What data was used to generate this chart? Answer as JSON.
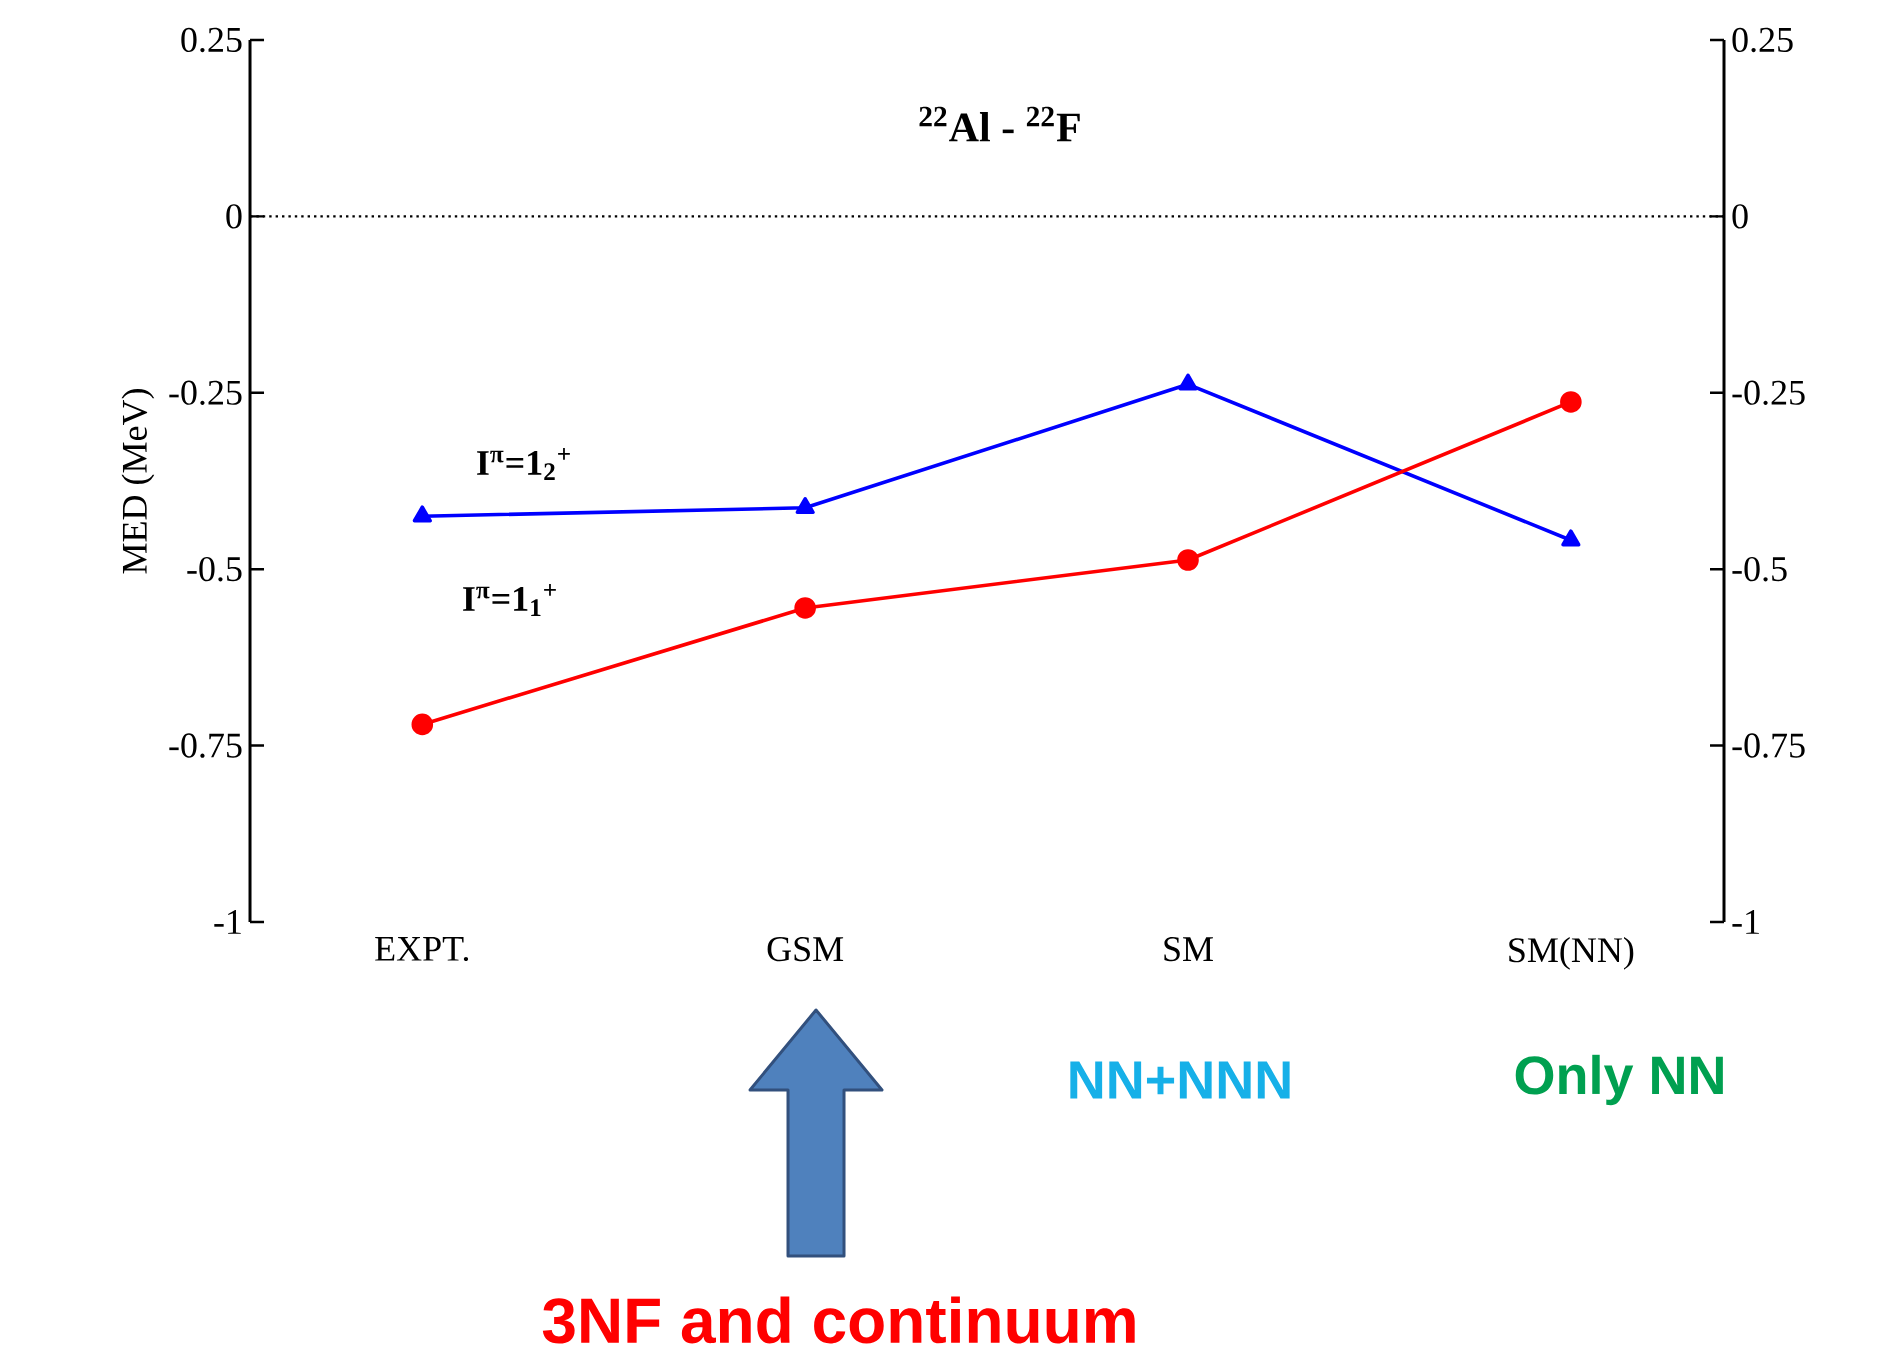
{
  "chart_data": {
    "type": "line",
    "title": "$^{22}$Al - $^{22}$F",
    "ylabel": "MED (MeV)",
    "categories": [
      "EXPT.",
      "GSM",
      "SM",
      "SM(NN)"
    ],
    "series": [
      {
        "name": "I$^{π}$=1$_{2}$$^{+}$",
        "color": "#0000ff",
        "marker": "triangle",
        "values": [
          -0.425,
          -0.413,
          -0.238,
          -0.459
        ]
      },
      {
        "name": "I$^{π}$=1$_{1}$$^{+}$",
        "color": "#ff0000",
        "marker": "circle",
        "values": [
          -0.72,
          -0.555,
          -0.487,
          -0.263
        ]
      }
    ],
    "ylim": [
      -1,
      0.25
    ],
    "yticks": [
      0.25,
      0,
      -0.25,
      -0.5,
      -0.75,
      -1
    ],
    "y2lim": [
      -1,
      0.25
    ],
    "y2ticks": [
      0.25,
      0,
      -0.25,
      -0.5,
      -0.75,
      -1
    ],
    "ref_lines": [
      {
        "axis": "y",
        "value": 0,
        "line_style": "dotted"
      }
    ],
    "annotations": [
      "NN+NNN",
      "Only NN",
      "3NF and continuum"
    ]
  }
}
